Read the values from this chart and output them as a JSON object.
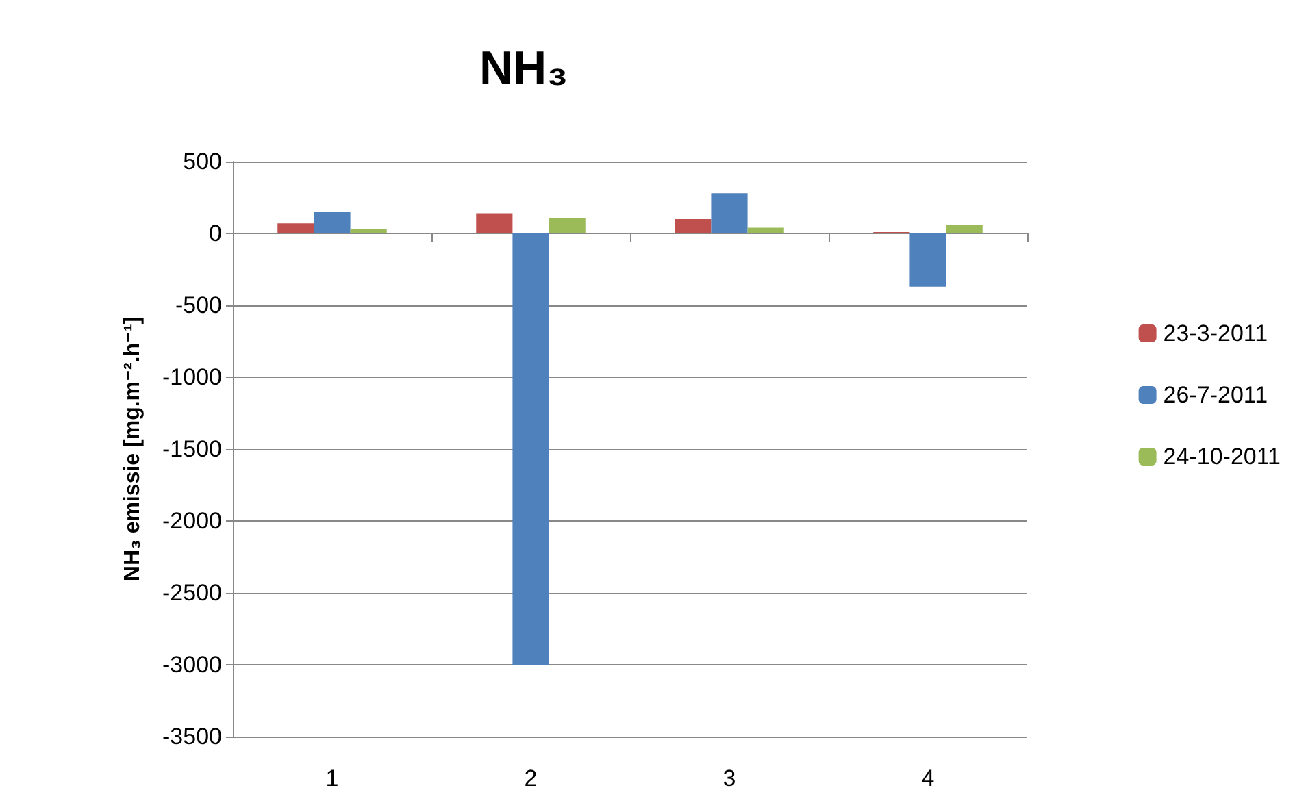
{
  "chart_data": {
    "type": "bar",
    "title": "NH₃",
    "ylabel": "NH₃ emissie [mg.m⁻².h⁻¹]",
    "categories": [
      "1",
      "2",
      "3",
      "4"
    ],
    "series": [
      {
        "name": "23-3-2011",
        "color": "#c0504d",
        "values": [
          70,
          140,
          100,
          10
        ]
      },
      {
        "name": "26-7-2011",
        "color": "#4f81bd",
        "values": [
          150,
          -3000,
          280,
          -370
        ]
      },
      {
        "name": "24-10-2011",
        "color": "#9bbb59",
        "values": [
          30,
          110,
          40,
          60
        ]
      }
    ],
    "ylim": [
      -3500,
      500
    ],
    "yticks": [
      -3500,
      -3000,
      -2500,
      -2000,
      -1500,
      -1000,
      -500,
      0,
      500
    ],
    "grid": "y",
    "legend": "right"
  }
}
